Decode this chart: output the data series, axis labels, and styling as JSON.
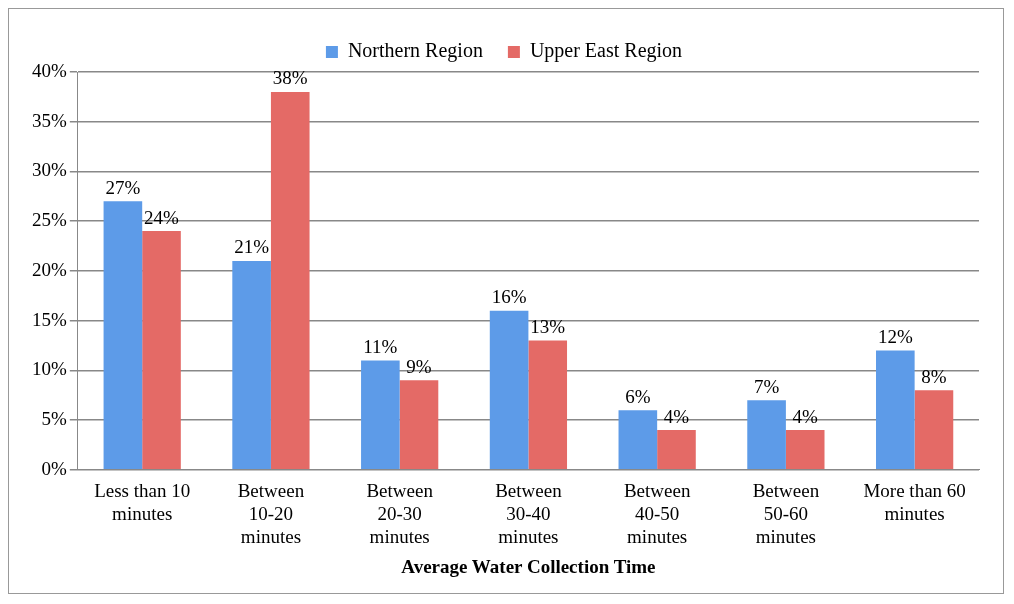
{
  "chart_data": {
    "type": "bar",
    "xlabel": "Average Water Collection Time",
    "categories": [
      "Less than 10 minutes",
      "Between 10-20 minutes",
      "Between 20-30 minutes",
      "Between 30-40 minutes",
      "Between 40-50 minutes",
      "Between 50-60 minutes",
      "More than 60 minutes"
    ],
    "series": [
      {
        "name": "Northern Region",
        "color": "#5d9be8",
        "values": [
          27,
          21,
          11,
          16,
          6,
          7,
          12
        ],
        "value_labels": [
          "27%",
          "21%",
          "11%",
          "16%",
          "6%",
          "7%",
          "12%"
        ]
      },
      {
        "name": "Upper East Region",
        "color": "#e46a66",
        "values": [
          24,
          38,
          9,
          13,
          4,
          4,
          8
        ],
        "value_labels": [
          "24%",
          "38%",
          "9%",
          "13%",
          "4%",
          "4%",
          "8%"
        ]
      }
    ],
    "ylim": [
      0,
      40
    ],
    "yticks": [
      {
        "value": 0,
        "label": "0%"
      },
      {
        "value": 5,
        "label": "5%"
      },
      {
        "value": 10,
        "label": "10%"
      },
      {
        "value": 15,
        "label": "15%"
      },
      {
        "value": 20,
        "label": "20%"
      },
      {
        "value": 25,
        "label": "25%"
      },
      {
        "value": 30,
        "label": "30%"
      },
      {
        "value": 35,
        "label": "35%"
      },
      {
        "value": 40,
        "label": "40%"
      }
    ],
    "grid": "y",
    "legend": "top"
  }
}
